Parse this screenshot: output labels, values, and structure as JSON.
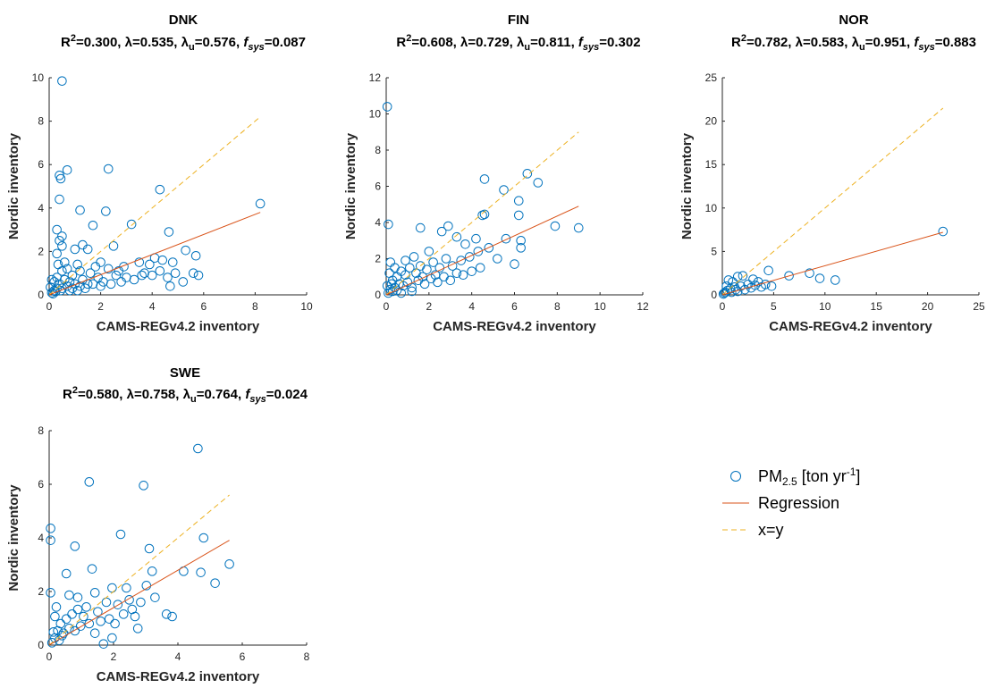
{
  "chart_data": [
    {
      "type": "scatter",
      "title": "DNK",
      "stats": {
        "r2_label": "R",
        "r2_sup": "2",
        "r2_value": "=0.300,",
        "lambda": "λ=0.535,",
        "lambda_u_sym": "λ",
        "lambda_u_sub": "u",
        "lambda_u_value": "=0.576,",
        "fsys_sym": "f",
        "fsys_sub": "sys",
        "fsys_value": "=0.087"
      },
      "xlabel": "CAMS-REGv4.2 inventory",
      "ylabel": "Nordic inventory",
      "xlim": [
        0,
        10
      ],
      "ylim": [
        0,
        10
      ],
      "xticks": [
        "0",
        "2",
        "4",
        "6",
        "8",
        "10"
      ],
      "yticks": [
        "0",
        "2",
        "4",
        "6",
        "8",
        "10"
      ],
      "regression": {
        "x": [
          0,
          8.2
        ],
        "y": [
          0,
          3.8
        ]
      },
      "identity": {
        "x": [
          0,
          8.2
        ],
        "y": [
          0,
          8.2
        ]
      },
      "points": [
        [
          0.5,
          9.85
        ],
        [
          0.7,
          5.75
        ],
        [
          2.3,
          5.8
        ],
        [
          0.4,
          5.5
        ],
        [
          0.45,
          5.35
        ],
        [
          4.3,
          4.85
        ],
        [
          0.4,
          4.4
        ],
        [
          8.2,
          4.2
        ],
        [
          1.2,
          3.9
        ],
        [
          2.2,
          3.85
        ],
        [
          3.2,
          3.25
        ],
        [
          0.3,
          3.0
        ],
        [
          1.7,
          3.2
        ],
        [
          4.65,
          2.9
        ],
        [
          0.5,
          2.7
        ],
        [
          0.4,
          2.5
        ],
        [
          1.3,
          2.3
        ],
        [
          2.5,
          2.25
        ],
        [
          0.5,
          2.25
        ],
        [
          1.0,
          2.1
        ],
        [
          1.5,
          2.1
        ],
        [
          0.3,
          1.9
        ],
        [
          5.7,
          1.8
        ],
        [
          5.3,
          2.05
        ],
        [
          4.4,
          1.6
        ],
        [
          4.8,
          1.5
        ],
        [
          4.1,
          1.7
        ],
        [
          3.9,
          1.4
        ],
        [
          3.5,
          1.5
        ],
        [
          2.9,
          1.3
        ],
        [
          2.3,
          1.2
        ],
        [
          1.8,
          1.3
        ],
        [
          1.6,
          1.0
        ],
        [
          1.2,
          1.1
        ],
        [
          0.9,
          0.9
        ],
        [
          0.7,
          1.2
        ],
        [
          0.5,
          1.1
        ],
        [
          0.3,
          0.8
        ],
        [
          0.2,
          0.6
        ],
        [
          0.4,
          0.5
        ],
        [
          0.6,
          0.7
        ],
        [
          0.8,
          0.6
        ],
        [
          1.0,
          0.5
        ],
        [
          1.3,
          0.7
        ],
        [
          1.5,
          0.5
        ],
        [
          1.9,
          0.8
        ],
        [
          2.1,
          0.6
        ],
        [
          2.6,
          0.9
        ],
        [
          3.0,
          0.8
        ],
        [
          3.3,
          0.7
        ],
        [
          3.7,
          1.0
        ],
        [
          4.0,
          0.9
        ],
        [
          4.3,
          1.1
        ],
        [
          4.6,
          0.8
        ],
        [
          4.9,
          1.0
        ],
        [
          5.2,
          0.6
        ],
        [
          5.6,
          1.0
        ],
        [
          5.8,
          0.9
        ],
        [
          4.7,
          0.4
        ],
        [
          0.1,
          0.1
        ],
        [
          0.2,
          0.2
        ],
        [
          0.3,
          0.3
        ],
        [
          0.15,
          0.05
        ],
        [
          0.5,
          0.3
        ],
        [
          0.7,
          0.4
        ],
        [
          0.9,
          0.3
        ],
        [
          1.1,
          0.2
        ],
        [
          1.4,
          0.3
        ],
        [
          1.7,
          0.5
        ],
        [
          2.0,
          0.4
        ],
        [
          2.4,
          0.5
        ],
        [
          2.8,
          0.6
        ],
        [
          0.05,
          0.35
        ],
        [
          0.35,
          1.4
        ],
        [
          0.6,
          1.5
        ],
        [
          1.1,
          1.4
        ],
        [
          2.0,
          1.5
        ],
        [
          2.7,
          1.1
        ],
        [
          3.6,
          0.9
        ],
        [
          0.25,
          0.15
        ],
        [
          0.45,
          0.2
        ],
        [
          0.8,
          0.2
        ],
        [
          1.2,
          0.4
        ],
        [
          0.1,
          0.7
        ]
      ]
    },
    {
      "type": "scatter",
      "title": "FIN",
      "stats": {
        "r2_label": "R",
        "r2_sup": "2",
        "r2_value": "=0.608,",
        "lambda": "λ=0.729,",
        "lambda_u_sym": "λ",
        "lambda_u_sub": "u",
        "lambda_u_value": "=0.811,",
        "fsys_sym": "f",
        "fsys_sub": "sys",
        "fsys_value": "=0.302"
      },
      "xlabel": "CAMS-REGv4.2 inventory",
      "ylabel": "Nordic inventory",
      "xlim": [
        0,
        12
      ],
      "ylim": [
        0,
        12
      ],
      "xticks": [
        "0",
        "2",
        "4",
        "6",
        "8",
        "10",
        "12"
      ],
      "yticks": [
        "0",
        "2",
        "4",
        "6",
        "8",
        "10",
        "12"
      ],
      "regression": {
        "x": [
          0,
          9.0
        ],
        "y": [
          0,
          4.9
        ]
      },
      "identity": {
        "x": [
          0,
          9.0
        ],
        "y": [
          0,
          9.0
        ]
      },
      "points": [
        [
          0.05,
          10.4
        ],
        [
          6.6,
          6.7
        ],
        [
          4.6,
          6.4
        ],
        [
          7.1,
          6.2
        ],
        [
          5.5,
          5.8
        ],
        [
          6.2,
          5.2
        ],
        [
          4.5,
          4.4
        ],
        [
          4.6,
          4.45
        ],
        [
          6.2,
          4.4
        ],
        [
          0.1,
          3.9
        ],
        [
          2.9,
          3.8
        ],
        [
          1.6,
          3.7
        ],
        [
          2.6,
          3.5
        ],
        [
          7.9,
          3.8
        ],
        [
          9.0,
          3.7
        ],
        [
          5.6,
          3.1
        ],
        [
          6.3,
          3.0
        ],
        [
          4.2,
          3.1
        ],
        [
          3.7,
          2.8
        ],
        [
          4.8,
          2.6
        ],
        [
          6.0,
          1.7
        ],
        [
          6.3,
          2.6
        ],
        [
          5.2,
          2.0
        ],
        [
          4.3,
          2.4
        ],
        [
          3.9,
          2.1
        ],
        [
          3.5,
          1.9
        ],
        [
          3.1,
          1.6
        ],
        [
          2.8,
          2.0
        ],
        [
          2.5,
          1.5
        ],
        [
          2.2,
          1.8
        ],
        [
          1.9,
          1.4
        ],
        [
          1.6,
          1.6
        ],
        [
          1.4,
          1.2
        ],
        [
          1.1,
          1.5
        ],
        [
          0.9,
          1.1
        ],
        [
          0.7,
          1.3
        ],
        [
          0.5,
          1.0
        ],
        [
          0.3,
          0.8
        ],
        [
          0.2,
          1.8
        ],
        [
          0.4,
          1.5
        ],
        [
          0.6,
          0.6
        ],
        [
          0.8,
          0.5
        ],
        [
          1.0,
          0.7
        ],
        [
          1.2,
          0.4
        ],
        [
          1.5,
          0.8
        ],
        [
          1.8,
          0.6
        ],
        [
          2.1,
          0.9
        ],
        [
          2.4,
          0.7
        ],
        [
          2.7,
          1.0
        ],
        [
          3.0,
          0.8
        ],
        [
          3.3,
          1.2
        ],
        [
          3.6,
          1.1
        ],
        [
          4.0,
          1.3
        ],
        [
          4.4,
          1.5
        ],
        [
          0.1,
          0.1
        ],
        [
          0.2,
          0.3
        ],
        [
          0.3,
          0.2
        ],
        [
          0.4,
          0.4
        ],
        [
          0.5,
          0.25
        ],
        [
          0.05,
          0.5
        ],
        [
          0.15,
          1.2
        ],
        [
          0.25,
          0.6
        ],
        [
          1.3,
          2.1
        ],
        [
          2.0,
          2.4
        ],
        [
          3.3,
          3.2
        ],
        [
          2.3,
          1.1
        ],
        [
          1.7,
          1.0
        ],
        [
          0.9,
          1.9
        ],
        [
          1.2,
          0.2
        ],
        [
          0.7,
          0.1
        ]
      ]
    },
    {
      "type": "scatter",
      "title": "NOR",
      "stats": {
        "r2_label": "R",
        "r2_sup": "2",
        "r2_value": "=0.782,",
        "lambda": "λ=0.583,",
        "lambda_u_sym": "λ",
        "lambda_u_sub": "u",
        "lambda_u_value": "=0.951,",
        "fsys_sym": "f",
        "fsys_sub": "sys",
        "fsys_value": "=0.883"
      },
      "xlabel": "CAMS-REGv4.2 inventory",
      "ylabel": "Nordic inventory",
      "xlim": [
        0,
        25
      ],
      "ylim": [
        0,
        25
      ],
      "xticks": [
        "0",
        "5",
        "10",
        "15",
        "20",
        "25"
      ],
      "yticks": [
        "0",
        "5",
        "10",
        "15",
        "20",
        "25"
      ],
      "regression": {
        "x": [
          0,
          21.5
        ],
        "y": [
          0,
          7.2
        ]
      },
      "identity": {
        "x": [
          0,
          21.5
        ],
        "y": [
          0,
          21.5
        ]
      },
      "points": [
        [
          21.5,
          7.3
        ],
        [
          4.5,
          2.8
        ],
        [
          8.5,
          2.5
        ],
        [
          6.5,
          2.2
        ],
        [
          9.5,
          1.9
        ],
        [
          11.0,
          1.7
        ],
        [
          1.5,
          2.1
        ],
        [
          2.0,
          2.2
        ],
        [
          3.0,
          1.8
        ],
        [
          3.5,
          1.5
        ],
        [
          4.2,
          1.2
        ],
        [
          2.5,
          1.2
        ],
        [
          1.8,
          1.0
        ],
        [
          1.2,
          0.9
        ],
        [
          0.8,
          0.7
        ],
        [
          0.5,
          0.5
        ],
        [
          0.3,
          0.3
        ],
        [
          0.2,
          0.2
        ],
        [
          0.1,
          0.1
        ],
        [
          1.0,
          1.5
        ],
        [
          0.6,
          1.7
        ],
        [
          2.8,
          0.8
        ],
        [
          3.8,
          0.9
        ],
        [
          4.8,
          1.0
        ],
        [
          1.5,
          0.4
        ],
        [
          2.2,
          0.6
        ],
        [
          0.9,
          0.3
        ],
        [
          0.4,
          1.0
        ],
        [
          1.3,
          0.6
        ],
        [
          3.2,
          1.1
        ]
      ]
    },
    {
      "type": "scatter",
      "title": "SWE",
      "stats": {
        "r2_label": "R",
        "r2_sup": "2",
        "r2_value": "=0.580,",
        "lambda": "λ=0.758,",
        "lambda_u_sym": "λ",
        "lambda_u_sub": "u",
        "lambda_u_value": "=0.764,",
        "fsys_sym": "f",
        "fsys_sub": "sys",
        "fsys_value": "=0.024"
      },
      "xlabel": "CAMS-REGv4.2 inventory",
      "ylabel": "Nordic inventory",
      "xlim": [
        0,
        9
      ],
      "ylim": [
        0,
        9
      ],
      "xticks": [
        "0",
        "2",
        "4",
        "6",
        "8"
      ],
      "yticks": [
        "0",
        "2",
        "4",
        "6",
        "8"
      ],
      "regression": {
        "x": [
          0,
          6.3
        ],
        "y": [
          0,
          4.4
        ]
      },
      "identity": {
        "x": [
          0,
          6.3
        ],
        "y": [
          0,
          6.3
        ]
      },
      "points": [
        [
          5.2,
          8.25
        ],
        [
          1.4,
          6.85
        ],
        [
          3.3,
          6.7
        ],
        [
          0.05,
          4.9
        ],
        [
          0.05,
          4.4
        ],
        [
          2.5,
          4.65
        ],
        [
          5.4,
          4.5
        ],
        [
          0.9,
          4.15
        ],
        [
          3.5,
          4.05
        ],
        [
          6.3,
          3.4
        ],
        [
          4.7,
          3.1
        ],
        [
          5.3,
          3.05
        ],
        [
          3.6,
          3.1
        ],
        [
          1.5,
          3.2
        ],
        [
          0.6,
          3.0
        ],
        [
          5.8,
          2.6
        ],
        [
          3.4,
          2.5
        ],
        [
          2.7,
          2.4
        ],
        [
          2.2,
          2.4
        ],
        [
          1.6,
          2.2
        ],
        [
          0.05,
          2.2
        ],
        [
          4.1,
          1.3
        ],
        [
          4.3,
          1.2
        ],
        [
          3.2,
          1.8
        ],
        [
          2.9,
          1.5
        ],
        [
          2.4,
          1.7
        ],
        [
          2.0,
          1.8
        ],
        [
          1.7,
          1.4
        ],
        [
          1.3,
          1.6
        ],
        [
          1.0,
          1.5
        ],
        [
          0.8,
          1.3
        ],
        [
          0.6,
          1.1
        ],
        [
          0.4,
          0.9
        ],
        [
          0.2,
          1.2
        ],
        [
          0.3,
          0.6
        ],
        [
          0.5,
          0.5
        ],
        [
          0.7,
          0.7
        ],
        [
          0.9,
          0.6
        ],
        [
          1.1,
          0.8
        ],
        [
          1.4,
          0.9
        ],
        [
          1.8,
          1.0
        ],
        [
          2.1,
          1.1
        ],
        [
          2.6,
          1.3
        ],
        [
          3.0,
          1.2
        ],
        [
          0.1,
          0.1
        ],
        [
          0.2,
          0.3
        ],
        [
          0.35,
          0.2
        ],
        [
          0.45,
          0.4
        ],
        [
          0.15,
          0.55
        ],
        [
          1.9,
          0.05
        ],
        [
          2.2,
          0.3
        ],
        [
          1.0,
          2.0
        ],
        [
          0.7,
          2.1
        ],
        [
          1.2,
          1.2
        ],
        [
          2.3,
          0.9
        ],
        [
          3.1,
          0.7
        ],
        [
          0.25,
          1.6
        ],
        [
          1.6,
          0.5
        ],
        [
          2.8,
          1.9
        ],
        [
          3.7,
          2.0
        ]
      ]
    }
  ],
  "legend": {
    "series_label": "PM",
    "series_sub": "2.5",
    "series_unit": " [ton yr",
    "series_sup": "-1",
    "series_close": "]",
    "regression_label": "Regression",
    "identity_label": "x=y",
    "colors": {
      "points": "#0072bd",
      "regression": "#d95319",
      "identity": "#edb120"
    }
  }
}
